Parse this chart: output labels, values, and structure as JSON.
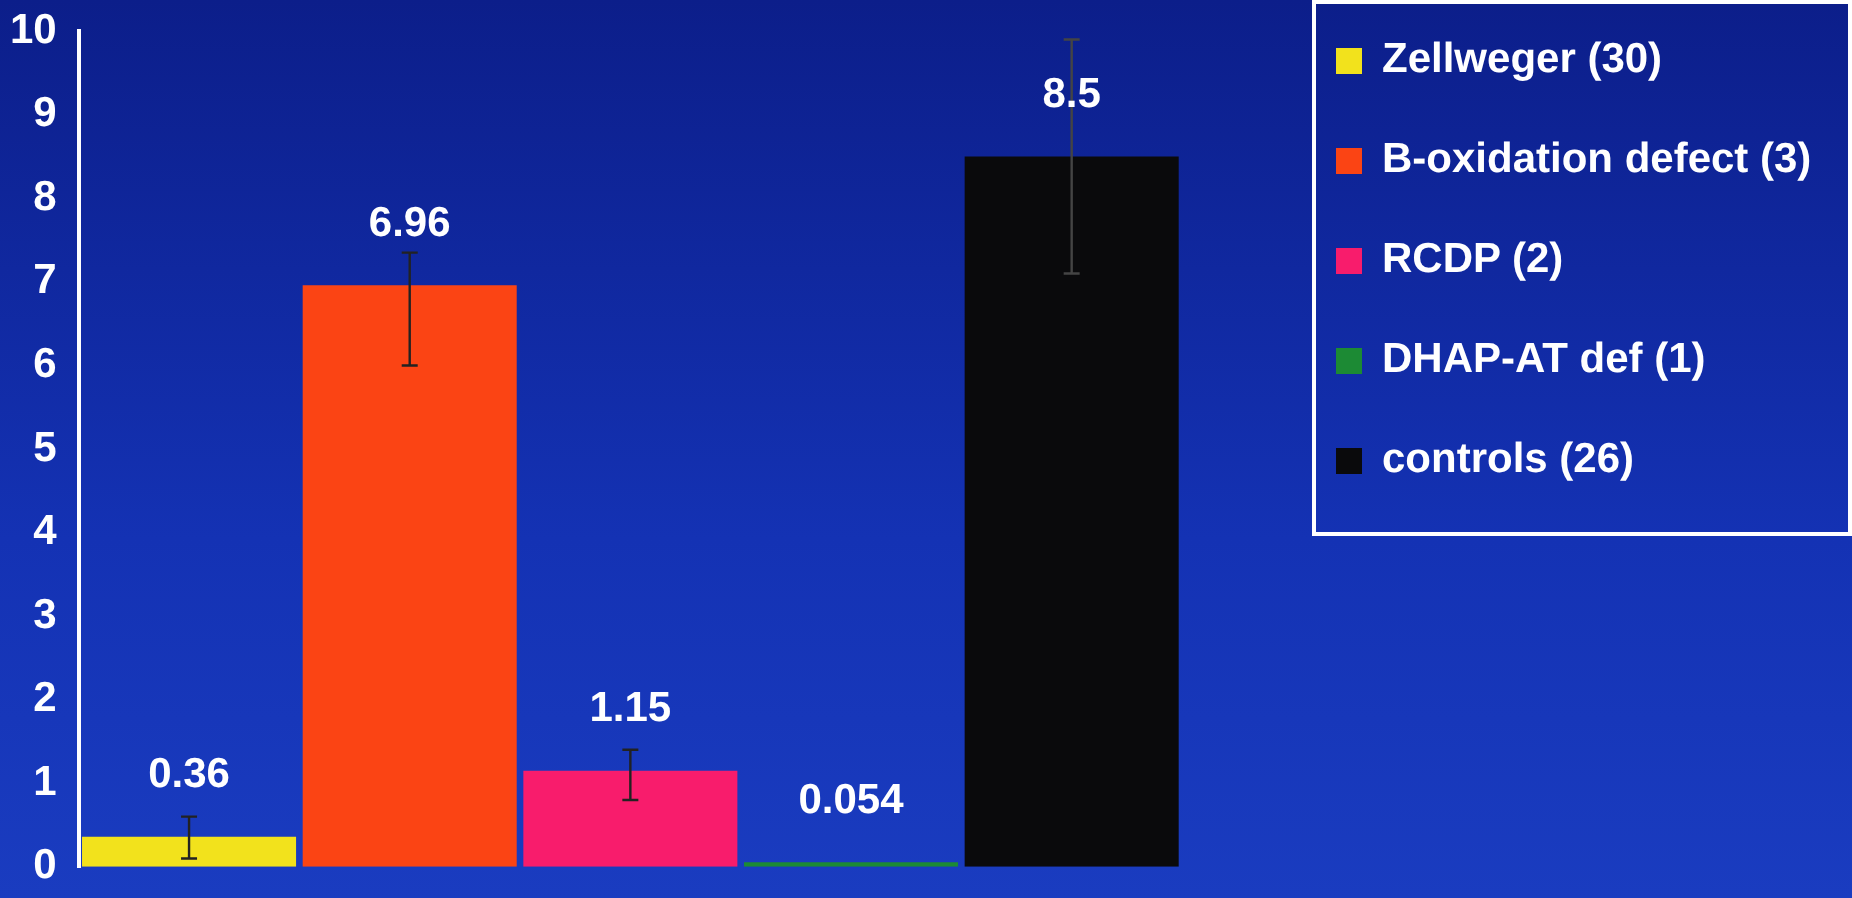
{
  "chart_data": {
    "type": "bar",
    "categories": [
      null
    ],
    "series": [
      {
        "name": "Zellweger (30)",
        "color": "#f2e21c",
        "values": [
          0.36
        ],
        "errors": [
          [
            0.1,
            0.6
          ]
        ]
      },
      {
        "name": "B-oxidation defect (3)",
        "color": "#fb4414",
        "values": [
          6.96
        ],
        "errors": [
          [
            6.0,
            7.35
          ]
        ]
      },
      {
        "name": "RCDP (2)",
        "color": "#f81c6c",
        "values": [
          1.15
        ],
        "errors": [
          [
            0.8,
            1.4
          ]
        ]
      },
      {
        "name": "DHAP-AT def (1)",
        "color": "#1c8a34",
        "values": [
          0.054
        ]
      },
      {
        "name": "controls (26)",
        "color": "#0a0a0c",
        "values": [
          8.5
        ],
        "errors": [
          [
            7.1,
            9.9
          ]
        ]
      }
    ],
    "ylim": [
      0,
      10
    ],
    "yticks": [
      0,
      1,
      2,
      3,
      4,
      5,
      6,
      7,
      8,
      9,
      10
    ],
    "grid": false,
    "legend": "top right",
    "data_labels": true
  }
}
